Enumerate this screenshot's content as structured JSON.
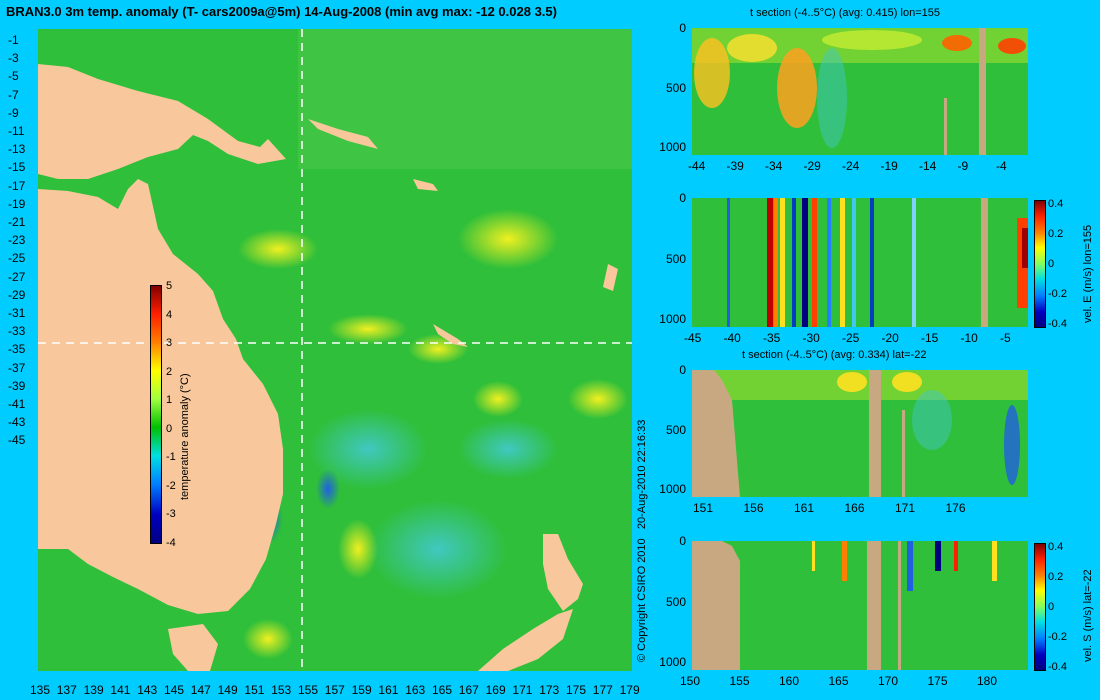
{
  "map": {
    "title": "BRAN3.0 3m temp. anomaly (T- cars2009a@5m) 14-Aug-2008 (min avg max: -12 0.028 3.5)",
    "lat_labels": [
      "-1",
      "-3",
      "-5",
      "-7",
      "-9",
      "-11",
      "-13",
      "-15",
      "-17",
      "-19",
      "-21",
      "-23",
      "-25",
      "-27",
      "-29",
      "-31",
      "-33",
      "-35",
      "-37",
      "-39",
      "-41",
      "-43",
      "-45"
    ],
    "lon_labels": [
      "135",
      "137",
      "139",
      "141",
      "143",
      "145",
      "147",
      "149",
      "151",
      "153",
      "155",
      "157",
      "159",
      "161",
      "163",
      "165",
      "167",
      "169",
      "171",
      "173",
      "175",
      "177",
      "179"
    ],
    "colorbar": {
      "label": "temperature anomaly (°C)",
      "ticks": [
        "5",
        "4",
        "3",
        "2",
        "1",
        "0",
        "-1",
        "-2",
        "-3",
        "-4"
      ]
    },
    "copyright": "© Copyright CSIRO 2010",
    "timestamp": "20-Aug-2010 22:16:33",
    "colors": {
      "ocean": "#2fbf3a",
      "land": "#f8c89c",
      "background": "#00ccff"
    }
  },
  "panels": [
    {
      "title": "t section (-4..5°C) (avg: 0.415) lon=155",
      "y_ticks": [
        "0",
        "500",
        "1000"
      ],
      "x_ticks": [
        "-44",
        "-39",
        "-34",
        "-29",
        "-24",
        "-19",
        "-14",
        "-9",
        "-4"
      ],
      "colorbar": null
    },
    {
      "title": "",
      "y_ticks": [
        "0",
        "500",
        "1000"
      ],
      "x_ticks": [
        "-45",
        "-40",
        "-35",
        "-30",
        "-25",
        "-20",
        "-15",
        "-10",
        "-5"
      ],
      "colorbar": {
        "label": "vel. E (m/s) lon=155",
        "ticks": [
          "0.4",
          "0.2",
          "0",
          "-0.2",
          "-0.4"
        ]
      }
    },
    {
      "title": "t section (-4..5°C) (avg: 0.334) lat=-22",
      "y_ticks": [
        "0",
        "500",
        "1000"
      ],
      "x_ticks": [
        "151",
        "156",
        "161",
        "166",
        "171",
        "176"
      ],
      "colorbar": null
    },
    {
      "title": "",
      "y_ticks": [
        "0",
        "500",
        "1000"
      ],
      "x_ticks": [
        "150",
        "155",
        "160",
        "165",
        "170",
        "175",
        "180"
      ],
      "colorbar": {
        "label": "vel. S (m/s) lat=-22",
        "ticks": [
          "0.4",
          "0.2",
          "0",
          "-0.2",
          "-0.4"
        ]
      }
    }
  ]
}
